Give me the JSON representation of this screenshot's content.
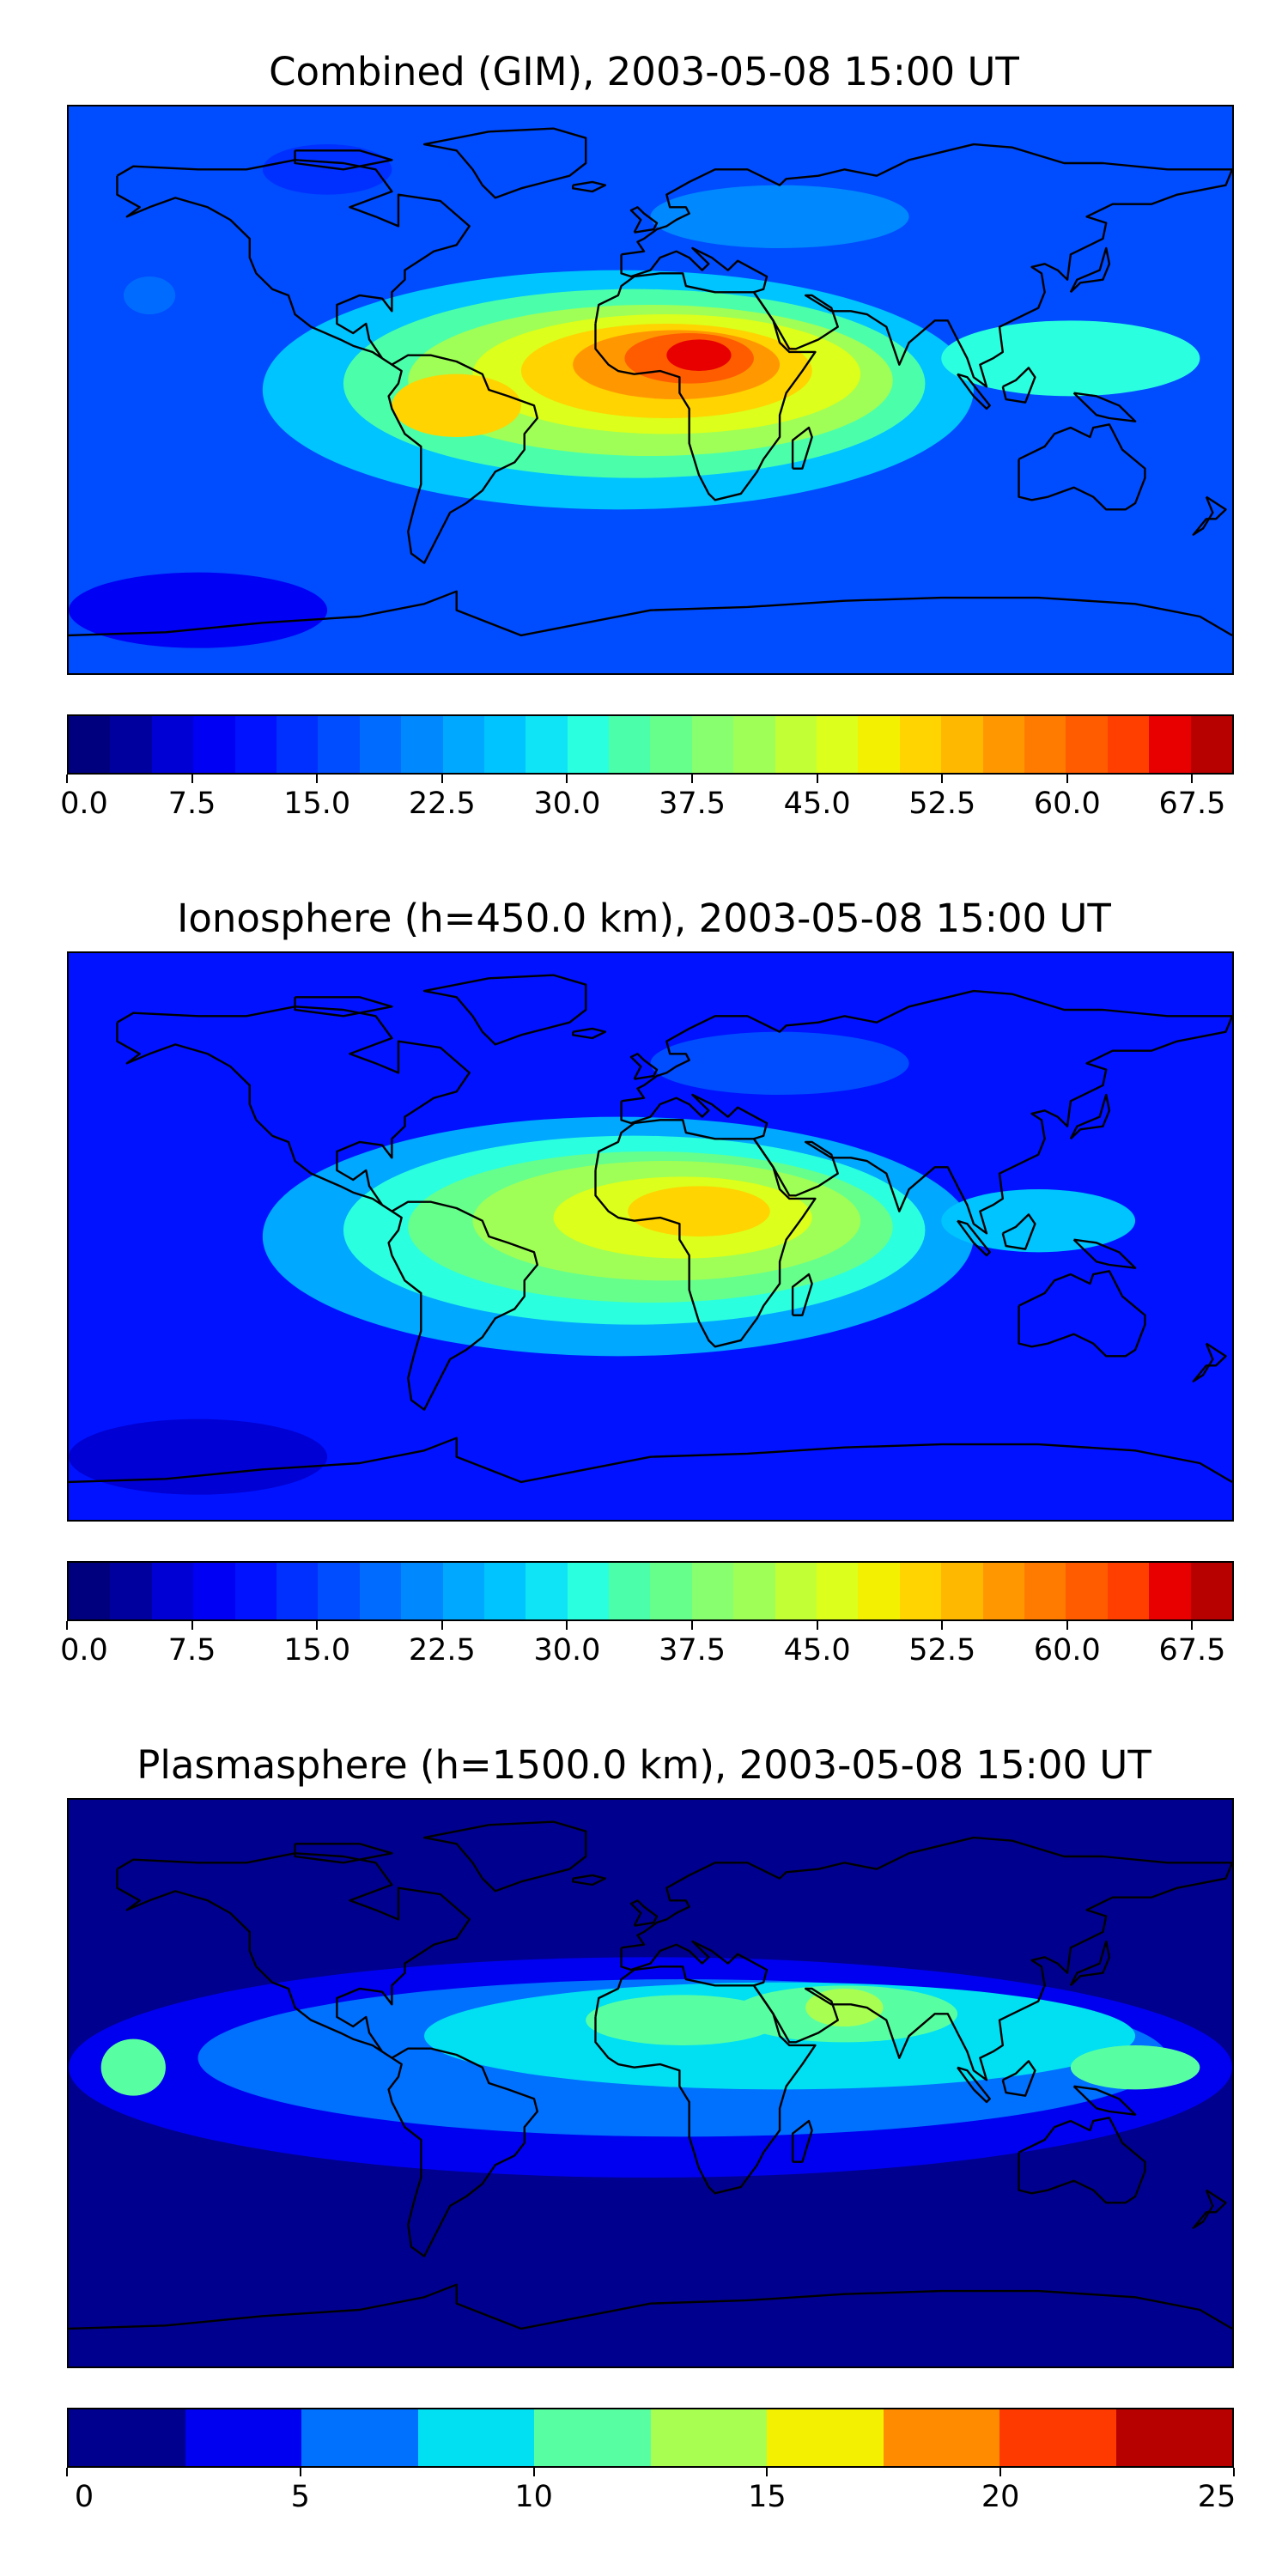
{
  "panels": [
    {
      "title": "Combined (GIM), 2003-05-08 15:00 UT",
      "colorbar": {
        "min": 0,
        "max": 70,
        "levels": 28,
        "colors": [
          "#00007f",
          "#00009f",
          "#0000d4",
          "#0000f4",
          "#0012ff",
          "#0030ff",
          "#004cff",
          "#006cff",
          "#0088ff",
          "#00a8ff",
          "#00c4ff",
          "#0ee4f6",
          "#2affdf",
          "#4bffaa",
          "#66ff8c",
          "#88ff6f",
          "#9fff56",
          "#c2ff35",
          "#dcff1b",
          "#f4f002",
          "#ffd400",
          "#ffb800",
          "#ff9800",
          "#ff7b00",
          "#ff5c00",
          "#ff3f00",
          "#e80000",
          "#b70000"
        ],
        "tick_values": [
          0.0,
          7.5,
          15.0,
          22.5,
          30.0,
          37.5,
          45.0,
          52.5,
          60.0,
          67.5
        ],
        "tick_labels": [
          "0.0",
          "7.5",
          "15.0",
          "22.5",
          "30.0",
          "37.5",
          "45.0",
          "52.5",
          "60.0",
          "67.5"
        ]
      },
      "field": {
        "background_level": 6,
        "blobs": [
          {
            "lon": -155,
            "lat": 30,
            "level": 7,
            "rx": 8,
            "ry": 6
          },
          {
            "lon": -100,
            "lat": 70,
            "level": 5,
            "rx": 20,
            "ry": 8
          },
          {
            "lon": 40,
            "lat": 55,
            "level": 8,
            "rx": 40,
            "ry": 10
          },
          {
            "lon": -10,
            "lat": 0,
            "level": 10,
            "rx": 110,
            "ry": 38
          },
          {
            "lon": -5,
            "lat": 2,
            "level": 13,
            "rx": 90,
            "ry": 30
          },
          {
            "lon": 0,
            "lat": 3,
            "level": 16,
            "rx": 75,
            "ry": 24
          },
          {
            "lon": 5,
            "lat": 5,
            "level": 18,
            "rx": 60,
            "ry": 19
          },
          {
            "lon": 5,
            "lat": 6,
            "level": 20,
            "rx": 45,
            "ry": 15
          },
          {
            "lon": 8,
            "lat": 8,
            "level": 22,
            "rx": 32,
            "ry": 11
          },
          {
            "lon": 12,
            "lat": 10,
            "level": 24,
            "rx": 20,
            "ry": 8
          },
          {
            "lon": 15,
            "lat": 11,
            "level": 26,
            "rx": 10,
            "ry": 5
          },
          {
            "lon": 130,
            "lat": 10,
            "level": 12,
            "rx": 40,
            "ry": 12
          },
          {
            "lon": -60,
            "lat": -5,
            "level": 20,
            "rx": 20,
            "ry": 10
          },
          {
            "lon": -140,
            "lat": -70,
            "level": 3,
            "rx": 40,
            "ry": 12
          }
        ]
      }
    },
    {
      "title": "Ionosphere  (h=450.0 km), 2003-05-08 15:00 UT",
      "colorbar": {
        "min": 0,
        "max": 70,
        "levels": 28,
        "colors": [
          "#00007f",
          "#00009f",
          "#0000d4",
          "#0000f4",
          "#0012ff",
          "#0030ff",
          "#004cff",
          "#006cff",
          "#0088ff",
          "#00a8ff",
          "#00c4ff",
          "#0ee4f6",
          "#2affdf",
          "#4bffaa",
          "#66ff8c",
          "#88ff6f",
          "#9fff56",
          "#c2ff35",
          "#dcff1b",
          "#f4f002",
          "#ffd400",
          "#ffb800",
          "#ff9800",
          "#ff7b00",
          "#ff5c00",
          "#ff3f00",
          "#e80000",
          "#b70000"
        ],
        "tick_values": [
          0.0,
          7.5,
          15.0,
          22.5,
          30.0,
          37.5,
          45.0,
          52.5,
          60.0,
          67.5
        ],
        "tick_labels": [
          "0.0",
          "7.5",
          "15.0",
          "22.5",
          "30.0",
          "37.5",
          "45.0",
          "52.5",
          "60.0",
          "67.5"
        ]
      },
      "field": {
        "background_level": 4,
        "blobs": [
          {
            "lon": 40,
            "lat": 55,
            "level": 6,
            "rx": 40,
            "ry": 10
          },
          {
            "lon": -10,
            "lat": 0,
            "level": 9,
            "rx": 110,
            "ry": 38
          },
          {
            "lon": -5,
            "lat": 2,
            "level": 12,
            "rx": 90,
            "ry": 30
          },
          {
            "lon": 0,
            "lat": 3,
            "level": 14,
            "rx": 75,
            "ry": 24
          },
          {
            "lon": 5,
            "lat": 5,
            "level": 16,
            "rx": 60,
            "ry": 19
          },
          {
            "lon": 10,
            "lat": 6,
            "level": 18,
            "rx": 40,
            "ry": 13
          },
          {
            "lon": 15,
            "lat": 8,
            "level": 20,
            "rx": 22,
            "ry": 8
          },
          {
            "lon": 120,
            "lat": 5,
            "level": 10,
            "rx": 30,
            "ry": 10
          },
          {
            "lon": -140,
            "lat": -70,
            "level": 2,
            "rx": 40,
            "ry": 12
          }
        ]
      }
    },
    {
      "title": "Plasmasphere (h=1500.0 km), 2003-05-08 15:00 UT",
      "colorbar": {
        "min": 0,
        "max": 25,
        "levels": 10,
        "colors": [
          "#00008f",
          "#0000f0",
          "#0070ff",
          "#00e0f2",
          "#58ffa2",
          "#a8ff52",
          "#f4f002",
          "#ff8c00",
          "#ff3a00",
          "#b70000"
        ],
        "tick_values": [
          0,
          5,
          10,
          15,
          20,
          25
        ],
        "tick_labels": [
          "0",
          "5",
          "10",
          "15",
          "20",
          "25"
        ]
      },
      "field": {
        "background_level": 0,
        "blobs": [
          {
            "lon": 0,
            "lat": 5,
            "level": 1,
            "rx": 180,
            "ry": 35
          },
          {
            "lon": 10,
            "lat": 8,
            "level": 2,
            "rx": 150,
            "ry": 25
          },
          {
            "lon": 40,
            "lat": 15,
            "level": 3,
            "rx": 110,
            "ry": 17
          },
          {
            "lon": -160,
            "lat": 5,
            "level": 4,
            "rx": 10,
            "ry": 9
          },
          {
            "lon": 10,
            "lat": 20,
            "level": 4,
            "rx": 30,
            "ry": 8
          },
          {
            "lon": 60,
            "lat": 22,
            "level": 4,
            "rx": 35,
            "ry": 9
          },
          {
            "lon": 150,
            "lat": 5,
            "level": 4,
            "rx": 20,
            "ry": 7
          },
          {
            "lon": 60,
            "lat": 24,
            "level": 5,
            "rx": 12,
            "ry": 6
          }
        ]
      }
    }
  ]
}
